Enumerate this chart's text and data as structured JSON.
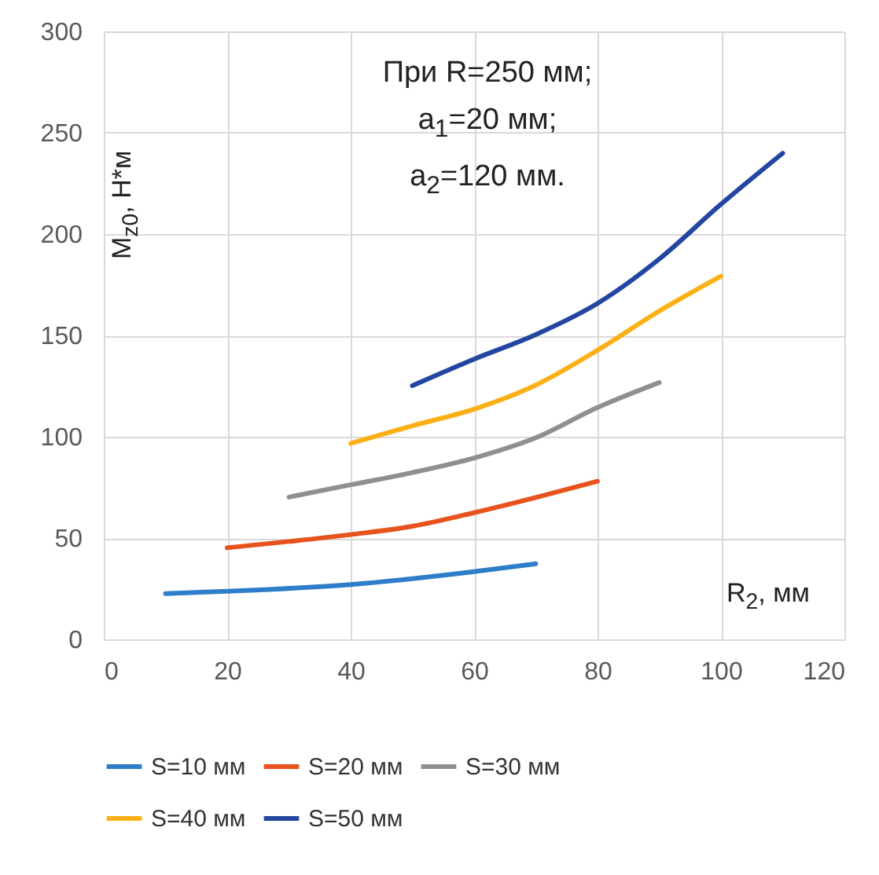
{
  "chart_data": {
    "type": "line",
    "xlabel": "R$_{2}$, мм",
    "ylabel": "M$_{z0}$, Н*м",
    "annotations": [
      "При R=250 мм;",
      "a$_{1}$=20 мм;",
      "a$_{2}$=120 мм."
    ],
    "xlim": [
      0,
      120
    ],
    "xticks": [
      0,
      20,
      40,
      60,
      80,
      100,
      120
    ],
    "ylim": [
      0,
      300
    ],
    "yticks": [
      0,
      50,
      100,
      150,
      200,
      250,
      300
    ],
    "grid": true,
    "legend": "bottom",
    "line_style": "solid",
    "series": [
      {
        "name": "S=10 мм",
        "color": "#2e7dc8",
        "x": [
          10,
          20,
          40,
          60,
          70
        ],
        "values": [
          22.6,
          23.7,
          27,
          33.4,
          37.3
        ]
      },
      {
        "name": "S=20 мм",
        "color": "#e8521c",
        "x": [
          20,
          30,
          40,
          50,
          60,
          70,
          80
        ],
        "values": [
          45.2,
          48.3,
          51.7,
          55.8,
          62.5,
          70,
          78
        ]
      },
      {
        "name": "S=30 мм",
        "color": "#8f8f8f",
        "x": [
          30,
          40,
          50,
          60,
          70,
          80,
          90
        ],
        "values": [
          70.2,
          76.3,
          82.3,
          89.5,
          99.5,
          114.4,
          126.7
        ]
      },
      {
        "name": "S=40 мм",
        "color": "#fbb016",
        "x": [
          40,
          50,
          60,
          70,
          80,
          90,
          100
        ],
        "values": [
          96.7,
          105.4,
          113.6,
          125.5,
          142.7,
          162,
          179.2
        ]
      },
      {
        "name": "S=50 мм",
        "color": "#2346a0",
        "x": [
          50,
          60,
          70,
          80,
          90,
          100,
          110
        ],
        "values": [
          125.2,
          138.3,
          150.4,
          165.8,
          187.7,
          214.7,
          239.9
        ]
      }
    ]
  }
}
